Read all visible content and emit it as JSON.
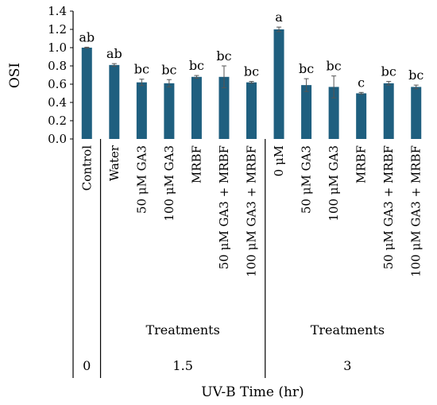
{
  "chart_data": {
    "type": "bar",
    "ylabel": "OSI",
    "xlabel": "UV-B Time (hr)",
    "ylim": [
      0,
      1.4
    ],
    "yticks": [
      "0.0",
      "0.2",
      "0.4",
      "0.6",
      "0.8",
      "1.0",
      "1.2",
      "1.4"
    ],
    "grid": false,
    "bar_color": "#1f5f7f",
    "categories": [
      "Control",
      "Water",
      "50 μM GA3",
      "100 μM GA3",
      "MRBF",
      "50 μM GA3 + MRBF",
      "100 μM GA3 + MRBF",
      "0 μM",
      "50 μM GA3",
      "100 μM GA3",
      "MRBF",
      "50 μM GA3 + MRBF",
      "100 μM GA3 + MRBF"
    ],
    "values": [
      1.0,
      0.81,
      0.62,
      0.61,
      0.68,
      0.68,
      0.62,
      1.2,
      0.59,
      0.57,
      0.5,
      0.61,
      0.57
    ],
    "errors": [
      0.005,
      0.015,
      0.035,
      0.04,
      0.015,
      0.12,
      0.01,
      0.025,
      0.07,
      0.12,
      0.01,
      0.02,
      0.02
    ],
    "significance": [
      "ab",
      "ab",
      "bc",
      "bc",
      "bc",
      "bc",
      "bc",
      "a",
      "bc",
      "bc",
      "c",
      "bc",
      "bc"
    ],
    "group_labels": [
      "",
      "Treatments",
      "Treatments"
    ],
    "time_labels": [
      "0",
      "1.5",
      "3"
    ]
  }
}
